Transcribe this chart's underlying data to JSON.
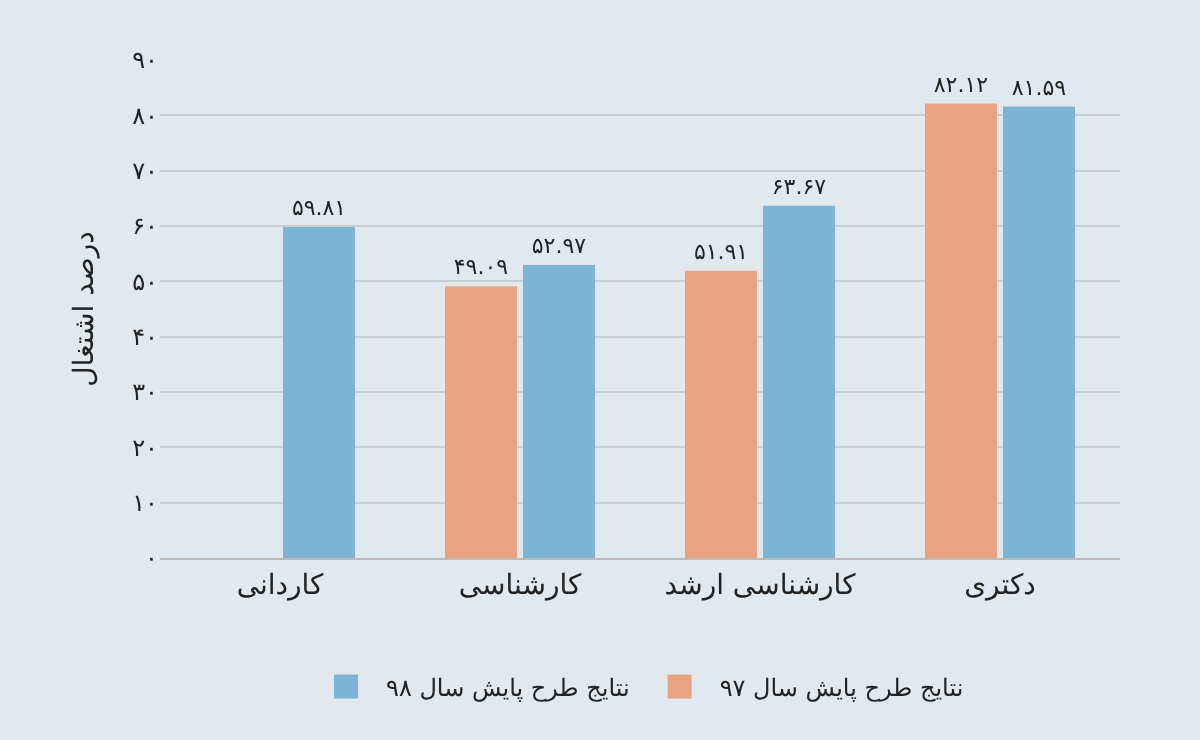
{
  "chart_data": {
    "type": "bar",
    "ylabel": "درصد اشتغال",
    "categories": [
      "کاردانی",
      "کارشناسی",
      "کارشناسی ارشد",
      "دکتری"
    ],
    "series": [
      {
        "name": "نتایج طرح پایش سال ۹۷",
        "color": "#e8a383",
        "values": [
          null,
          49.09,
          51.91,
          82.12
        ],
        "value_labels": [
          null,
          "۴۹.۰۹",
          "۵۱.۹۱",
          "۸۲.۱۲"
        ]
      },
      {
        "name": "نتایج طرح پایش سال ۹۸",
        "color": "#7db4d6",
        "values": [
          59.81,
          52.97,
          63.67,
          81.59
        ],
        "value_labels": [
          "۵۹.۸۱",
          "۵۲.۹۷",
          "۶۳.۶۷",
          "۸۱.۵۹"
        ]
      }
    ],
    "ylim": [
      0,
      90
    ],
    "yticks": [
      {
        "value": 0,
        "label": "۰"
      },
      {
        "value": 10,
        "label": "۱۰"
      },
      {
        "value": 20,
        "label": "۲۰"
      },
      {
        "value": 30,
        "label": "۳۰"
      },
      {
        "value": 40,
        "label": "۴۰"
      },
      {
        "value": 50,
        "label": "۵۰"
      },
      {
        "value": 60,
        "label": "۶۰"
      },
      {
        "value": 70,
        "label": "۷۰"
      },
      {
        "value": 80,
        "label": "۸۰"
      },
      {
        "value": 90,
        "label": "۹۰"
      }
    ],
    "grid": "y",
    "legend": "bottom"
  }
}
